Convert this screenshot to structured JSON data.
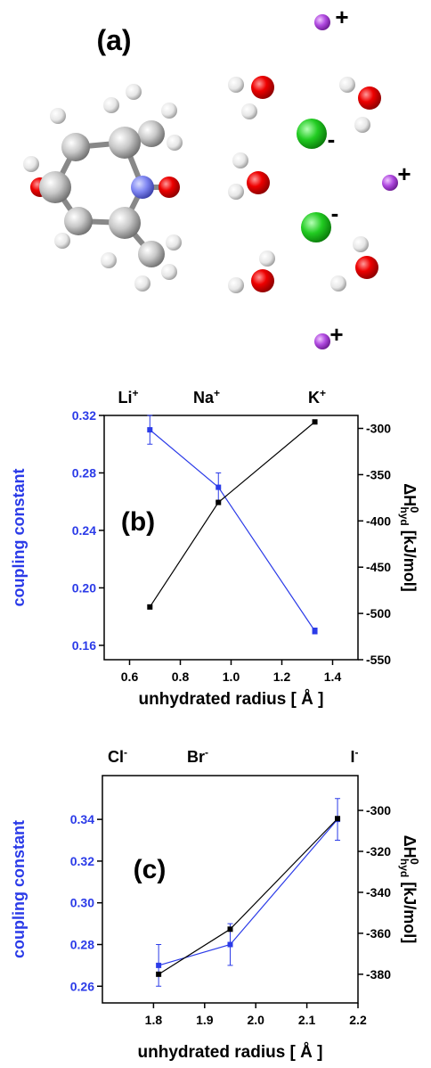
{
  "illustration": {
    "label": "(a)",
    "charges": [
      "+",
      "-",
      "+",
      "-",
      "+"
    ]
  },
  "chart_data": [
    {
      "type": "line",
      "annotation": "(b)",
      "top_labels": [
        {
          "text": "Li",
          "charge": "+"
        },
        {
          "text": "Na",
          "charge": "+"
        },
        {
          "text": "K",
          "charge": "+"
        }
      ],
      "xlabel": "unhydrated radius [ Å ]",
      "ylabel": "coupling constant",
      "y2label": {
        "main": "ΔH",
        "sup": "0",
        "sub": "hyd",
        "unit": " [kJ/mol]"
      },
      "x": [
        0.68,
        0.95,
        1.33
      ],
      "xlim": [
        0.5,
        1.5
      ],
      "xticks": [
        0.6,
        0.8,
        {
          "value": 1,
          "label": "1.0"
        },
        1.2,
        1.4
      ],
      "ylim": [
        0.15,
        0.32
      ],
      "yticks": [
        0.16,
        {
          "value": 0.2,
          "label": "0.20"
        },
        0.24,
        0.28,
        0.32
      ],
      "y2lim": [
        -550,
        -286
      ],
      "y2ticks": [
        -550,
        -500,
        -450,
        -400,
        -350,
        -300
      ],
      "series": [
        {
          "color": "#2b3be8",
          "values": [
            0.31,
            0.27,
            0.17
          ],
          "errors": [
            0.01,
            0.01,
            0.002
          ]
        },
        {
          "color": "#000000",
          "axis": "y2",
          "values": [
            -493,
            -380,
            -293
          ]
        }
      ]
    },
    {
      "type": "line",
      "annotation": "(c)",
      "top_labels": [
        {
          "text": "Cl",
          "charge": "-"
        },
        {
          "text": "Br",
          "charge": "-"
        },
        {
          "text": "I",
          "charge": "-"
        }
      ],
      "xlabel": "unhydrated radius [ Å ]",
      "ylabel": "coupling constant",
      "y2label": {
        "main": "ΔH",
        "sup": "0",
        "sub": "hyd",
        "unit": " [kJ/mol]"
      },
      "x": [
        1.81,
        1.95,
        2.16
      ],
      "xlim": [
        1.7,
        2.2
      ],
      "xticks": [
        1.8,
        1.9,
        {
          "value": 2,
          "label": "2.0"
        },
        2.1,
        2.2
      ],
      "ylim": [
        0.252,
        0.361
      ],
      "yticks": [
        0.26,
        0.28,
        {
          "value": 0.3,
          "label": "0.30"
        },
        0.32,
        0.34
      ],
      "y2lim": [
        -394,
        -283
      ],
      "y2ticks": [
        -380,
        -360,
        -340,
        -320,
        -300
      ],
      "series": [
        {
          "color": "#2b3be8",
          "values": [
            0.27,
            0.28,
            0.34
          ],
          "errors": [
            0.01,
            0.01,
            0.01
          ]
        },
        {
          "color": "#000000",
          "axis": "y2",
          "values": [
            -380,
            -358,
            -304
          ]
        }
      ]
    }
  ]
}
